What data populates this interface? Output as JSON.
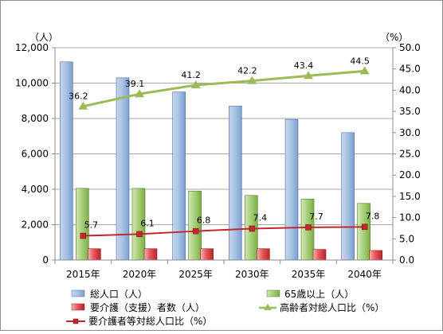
{
  "chart_data": {
    "type": "bar",
    "title": "",
    "categories": [
      "2015年",
      "2020年",
      "2025年",
      "2030年",
      "2035年",
      "2040年"
    ],
    "left_axis": {
      "unit_label": "（人）",
      "range": [
        0,
        12000
      ],
      "tick_labels": [
        "0",
        "2,000",
        "4,000",
        "6,000",
        "8,000",
        "10,000",
        "12,000"
      ]
    },
    "right_axis": {
      "unit_label": "（%）",
      "range": [
        0,
        50
      ],
      "tick_labels": [
        "0.0",
        "5.0",
        "10.0",
        "15.0",
        "20.0",
        "25.0",
        "30.0",
        "35.0",
        "40.0",
        "45.0",
        "50.0"
      ]
    },
    "grid": true,
    "legend_position": "bottom",
    "series": [
      {
        "name": "総人口（人）",
        "type": "bar",
        "axis": "left",
        "color": "#95b3d7",
        "values": [
          11200,
          10300,
          9500,
          8700,
          7950,
          7200
        ]
      },
      {
        "name": "65歳以上（人）",
        "type": "bar",
        "axis": "left",
        "color": "#9bbb59",
        "values": [
          4050,
          4050,
          3900,
          3650,
          3450,
          3200
        ]
      },
      {
        "name": "要介護（支援）者数（人）",
        "type": "bar",
        "axis": "left",
        "color": "#e0393c",
        "values": [
          640,
          640,
          640,
          640,
          600,
          540
        ]
      },
      {
        "name": "高齢者対総人口比（%）",
        "type": "line",
        "axis": "right",
        "color": "#9bbb59",
        "marker": "triangle",
        "values": [
          36.2,
          39.1,
          41.2,
          42.2,
          43.4,
          44.5
        ],
        "labels": [
          "36.2",
          "39.1",
          "41.2",
          "42.2",
          "43.4",
          "44.5"
        ]
      },
      {
        "name": "要介護者等対総人口比（%）",
        "type": "line",
        "axis": "right",
        "color": "#c0282d",
        "marker": "square",
        "values": [
          5.7,
          6.1,
          6.8,
          7.4,
          7.7,
          7.8
        ],
        "labels": [
          "5.7",
          "6.1",
          "6.8",
          "7.4",
          "7.7",
          "7.8"
        ]
      }
    ]
  }
}
